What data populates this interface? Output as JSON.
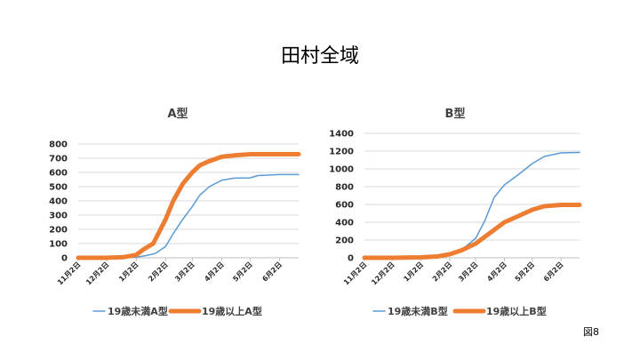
{
  "slide": {
    "title": "田村全域",
    "figure_label": "図8"
  },
  "colors": {
    "under19": "#5b9bd5",
    "over19": "#ed7d31",
    "grid": "#d9d9d9",
    "axis": "#bfbfbf"
  },
  "chart_data": [
    {
      "type": "line",
      "title": "A型",
      "ylim": [
        0,
        800
      ],
      "yticks": [
        "0",
        "100",
        "200",
        "300",
        "400",
        "500",
        "600",
        "700",
        "800"
      ],
      "xlim": [
        "2020-11-02",
        "2021-06-22"
      ],
      "xtick_labels": [
        "11月2日",
        "12月2日",
        "1月2日",
        "2月2日",
        "3月2日",
        "4月2日",
        "5月2日",
        "6月2日"
      ],
      "grid": true,
      "legend": "bottom",
      "series": [
        {
          "name": "19歳未満A型",
          "points": [
            [
              "2020-11-02",
              0
            ],
            [
              "2020-12-02",
              0
            ],
            [
              "2020-12-20",
              0
            ],
            [
              "2021-01-02",
              5
            ],
            [
              "2021-01-12",
              15
            ],
            [
              "2021-01-22",
              30
            ],
            [
              "2021-02-02",
              80
            ],
            [
              "2021-02-10",
              170
            ],
            [
              "2021-02-20",
              270
            ],
            [
              "2021-03-02",
              360
            ],
            [
              "2021-03-10",
              440
            ],
            [
              "2021-03-20",
              500
            ],
            [
              "2021-04-02",
              545
            ],
            [
              "2021-04-15",
              560
            ],
            [
              "2021-05-02",
              562
            ],
            [
              "2021-05-10",
              578
            ],
            [
              "2021-06-02",
              585
            ],
            [
              "2021-06-22",
              585
            ]
          ]
        },
        {
          "name": "19歳以上A型",
          "points": [
            [
              "2020-11-02",
              0
            ],
            [
              "2020-12-02",
              0
            ],
            [
              "2020-12-20",
              5
            ],
            [
              "2021-01-02",
              20
            ],
            [
              "2021-01-10",
              60
            ],
            [
              "2021-01-20",
              100
            ],
            [
              "2021-02-02",
              270
            ],
            [
              "2021-02-10",
              400
            ],
            [
              "2021-02-20",
              520
            ],
            [
              "2021-03-02",
              600
            ],
            [
              "2021-03-10",
              650
            ],
            [
              "2021-03-20",
              680
            ],
            [
              "2021-04-02",
              710
            ],
            [
              "2021-04-15",
              720
            ],
            [
              "2021-05-02",
              728
            ],
            [
              "2021-06-02",
              728
            ],
            [
              "2021-06-22",
              728
            ]
          ]
        }
      ]
    },
    {
      "type": "line",
      "title": "B型",
      "ylim": [
        0,
        1400
      ],
      "yticks": [
        "0",
        "200",
        "400",
        "600",
        "800",
        "1000",
        "1200",
        "1400"
      ],
      "xlim": [
        "2020-11-02",
        "2021-06-22"
      ],
      "xtick_labels": [
        "11月2日",
        "12月2日",
        "1月2日",
        "2月2日",
        "3月2日",
        "4月2日",
        "5月2日",
        "6月2日"
      ],
      "grid": true,
      "legend": "bottom",
      "series": [
        {
          "name": "19歳未満B型",
          "points": [
            [
              "2020-11-02",
              0
            ],
            [
              "2020-12-02",
              0
            ],
            [
              "2021-01-02",
              5
            ],
            [
              "2021-01-20",
              15
            ],
            [
              "2021-02-02",
              40
            ],
            [
              "2021-02-15",
              90
            ],
            [
              "2021-03-02",
              220
            ],
            [
              "2021-03-12",
              420
            ],
            [
              "2021-03-22",
              680
            ],
            [
              "2021-04-02",
              820
            ],
            [
              "2021-04-15",
              920
            ],
            [
              "2021-05-02",
              1060
            ],
            [
              "2021-05-15",
              1140
            ],
            [
              "2021-06-02",
              1180
            ],
            [
              "2021-06-22",
              1185
            ]
          ]
        },
        {
          "name": "19歳以上B型",
          "points": [
            [
              "2020-11-02",
              0
            ],
            [
              "2020-12-02",
              0
            ],
            [
              "2021-01-02",
              5
            ],
            [
              "2021-01-20",
              15
            ],
            [
              "2021-02-02",
              40
            ],
            [
              "2021-02-15",
              85
            ],
            [
              "2021-03-02",
              160
            ],
            [
              "2021-03-15",
              260
            ],
            [
              "2021-04-02",
              400
            ],
            [
              "2021-04-15",
              460
            ],
            [
              "2021-05-02",
              540
            ],
            [
              "2021-05-15",
              580
            ],
            [
              "2021-06-02",
              595
            ],
            [
              "2021-06-22",
              595
            ]
          ]
        }
      ]
    }
  ]
}
